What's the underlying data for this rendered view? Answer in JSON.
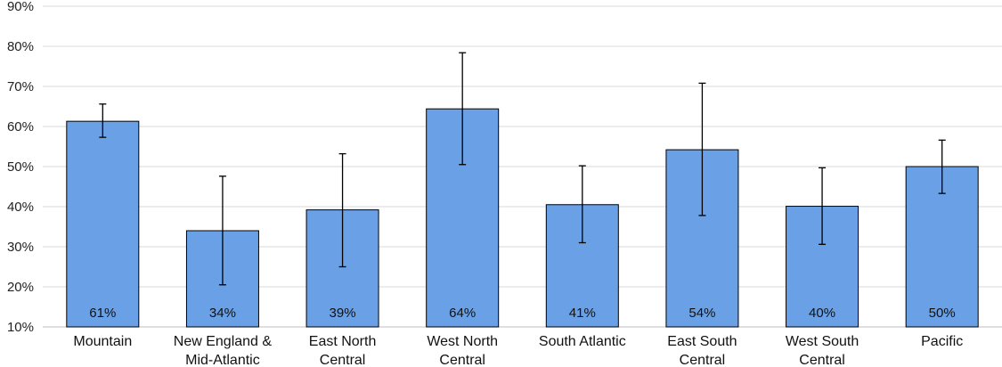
{
  "chart_data": {
    "type": "bar",
    "title": "",
    "xlabel": "",
    "ylabel": "",
    "categories": [
      [
        "Mountain"
      ],
      [
        "New England &",
        "Mid-Atlantic"
      ],
      [
        "East North",
        "Central"
      ],
      [
        "West North",
        "Central"
      ],
      [
        "South Atlantic"
      ],
      [
        "East South",
        "Central"
      ],
      [
        "West South",
        "Central"
      ],
      [
        "Pacific"
      ]
    ],
    "values": [
      61.3,
      34.0,
      39.2,
      64.4,
      40.5,
      54.2,
      40.1,
      50.0
    ],
    "data_labels": [
      "61%",
      "34%",
      "39%",
      "64%",
      "41%",
      "54%",
      "40%",
      "50%"
    ],
    "error_bars": [
      {
        "low": 57.3,
        "high": 65.6
      },
      {
        "low": 20.5,
        "high": 47.6
      },
      {
        "low": 25.0,
        "high": 53.2
      },
      {
        "low": 50.5,
        "high": 78.4
      },
      {
        "low": 31.0,
        "high": 50.2
      },
      {
        "low": 37.8,
        "high": 70.8
      },
      {
        "low": 30.6,
        "high": 49.7
      },
      {
        "low": 43.3,
        "high": 56.6
      }
    ],
    "ylim": [
      10,
      90
    ],
    "y_ticks": [
      10,
      20,
      30,
      40,
      50,
      60,
      70,
      80,
      90
    ],
    "y_tick_labels": [
      "10%",
      "20%",
      "30%",
      "40%",
      "50%",
      "60%",
      "70%",
      "80%",
      "90%"
    ],
    "grid": true,
    "legend": "none",
    "colors": {
      "bar": "#6aa1e6",
      "bar_edge": "#000000",
      "grid": "#d9d9d9",
      "error": "#000000"
    }
  }
}
